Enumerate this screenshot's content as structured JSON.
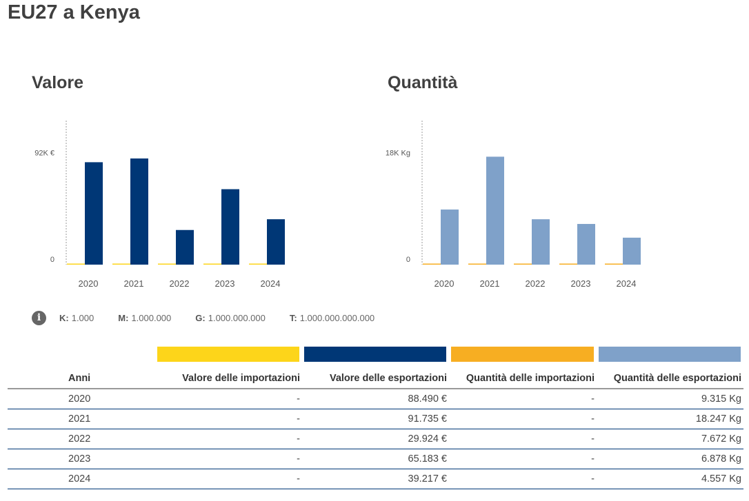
{
  "page": {
    "title": "EU27 a Kenya"
  },
  "colors": {
    "import_value": "#FDD51A",
    "export_value": "#003776",
    "import_quantity": "#F7AE22",
    "export_quantity": "#7FA1C9"
  },
  "chart_data": [
    {
      "type": "bar",
      "title": "Valore",
      "categories": [
        "2020",
        "2021",
        "2022",
        "2023",
        "2024"
      ],
      "series": [
        {
          "name": "Valore delle importazioni",
          "values": [
            0,
            0,
            0,
            0,
            0
          ]
        },
        {
          "name": "Valore delle esportazioni",
          "values": [
            88490,
            91735,
            29924,
            65183,
            39217
          ]
        }
      ],
      "yticks": [
        {
          "value": 0,
          "label": "0"
        },
        {
          "value": 92000,
          "label": "92K €"
        }
      ],
      "ylim": [
        0,
        92000
      ],
      "xlabel": "",
      "ylabel": "",
      "grid": false
    },
    {
      "type": "bar",
      "title": "Quantità",
      "categories": [
        "2020",
        "2021",
        "2022",
        "2023",
        "2024"
      ],
      "series": [
        {
          "name": "Quantità delle importazioni",
          "values": [
            0,
            0,
            0,
            0,
            0
          ]
        },
        {
          "name": "Quantità delle esportazioni",
          "values": [
            9315,
            18247,
            7672,
            6878,
            4557
          ]
        }
      ],
      "yticks": [
        {
          "value": 0,
          "label": "0"
        },
        {
          "value": 18000,
          "label": "18K Kg"
        }
      ],
      "ylim": [
        0,
        18000
      ],
      "xlabel": "",
      "ylabel": "",
      "grid": false
    }
  ],
  "units_legend": [
    {
      "key": "K:",
      "value": "1.000"
    },
    {
      "key": "M:",
      "value": "1.000.000"
    },
    {
      "key": "G:",
      "value": "1.000.000.000"
    },
    {
      "key": "T:",
      "value": "1.000.000.000.000"
    }
  ],
  "table": {
    "headers": [
      "Anni",
      "Valore delle importazioni",
      "Valore delle esportazioni",
      "Quantità delle importazioni",
      "Quantità delle esportazioni"
    ],
    "rows": [
      [
        "2020",
        "-",
        "88.490 €",
        "-",
        "9.315 Kg"
      ],
      [
        "2021",
        "-",
        "91.735 €",
        "-",
        "18.247 Kg"
      ],
      [
        "2022",
        "-",
        "29.924 €",
        "-",
        "7.672 Kg"
      ],
      [
        "2023",
        "-",
        "65.183 €",
        "-",
        "6.878 Kg"
      ],
      [
        "2024",
        "-",
        "39.217 €",
        "-",
        "4.557 Kg"
      ]
    ]
  }
}
